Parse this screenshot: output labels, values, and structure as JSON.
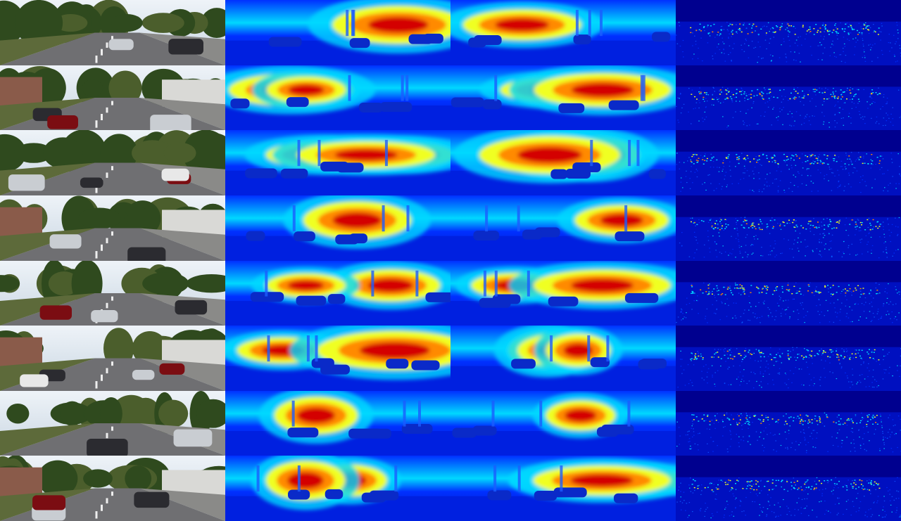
{
  "grid": {
    "rows": 8,
    "columns": 4
  },
  "columns": [
    {
      "type": "rgb-photo"
    },
    {
      "type": "depth-map"
    },
    {
      "type": "depth-map"
    },
    {
      "type": "sparse-lidar-depth"
    }
  ],
  "palette": {
    "jet_far": "#00008f",
    "jet_blue": "#0030ff",
    "jet_cyan": "#00d8ff",
    "jet_yellow": "#f0ff20",
    "jet_orange": "#ff8a00",
    "jet_red": "#d40000",
    "sky": "#dfe7ef",
    "road": "#6f6f72",
    "foliage": "#2f4a1e"
  },
  "scenes": [
    {
      "kind": "street-cyclist"
    },
    {
      "kind": "park-road-sign"
    },
    {
      "kind": "parked-cars"
    },
    {
      "kind": "buildings-intersection"
    },
    {
      "kind": "tram-tracks-truck"
    },
    {
      "kind": "sidewalk-hedge"
    },
    {
      "kind": "residential-van"
    },
    {
      "kind": "tree-lined-road"
    }
  ]
}
